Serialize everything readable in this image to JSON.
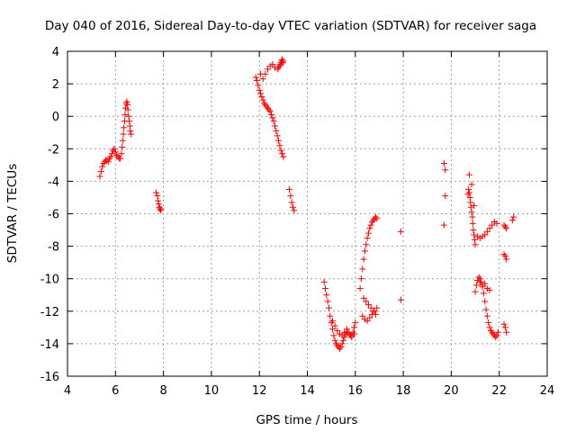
{
  "chart_data": {
    "type": "scatter",
    "title": "Day 040 of 2016, Sidereal Day-to-day VTEC variation (SDTVAR) for receiver saga",
    "xlabel": "GPS time / hours",
    "ylabel": "SDTVAR / TECUs",
    "xlim": [
      4,
      24
    ],
    "ylim": [
      -16,
      4
    ],
    "xticks": [
      4,
      6,
      8,
      10,
      12,
      14,
      16,
      18,
      20,
      22,
      24
    ],
    "yticks": [
      -16,
      -14,
      -12,
      -10,
      -8,
      -6,
      -4,
      -2,
      0,
      2,
      4
    ],
    "grid": true,
    "marker": "+",
    "color": "#ff0000",
    "series": [
      {
        "name": "SDTVAR",
        "x": [
          5.35,
          5.4,
          5.45,
          5.5,
          5.55,
          5.6,
          5.65,
          5.7,
          5.75,
          5.8,
          5.85,
          5.9,
          5.95,
          6.0,
          6.05,
          6.1,
          6.15,
          6.2,
          6.25,
          6.28,
          6.3,
          6.33,
          6.35,
          6.38,
          6.4,
          6.42,
          6.45,
          6.48,
          6.5,
          6.52,
          6.55,
          6.58,
          6.6,
          6.62,
          6.65,
          7.7,
          7.75,
          7.78,
          7.8,
          7.83,
          7.85,
          7.88,
          7.9,
          11.85,
          11.9,
          11.95,
          12.0,
          12.05,
          12.1,
          12.15,
          12.2,
          12.25,
          12.3,
          12.35,
          12.4,
          12.45,
          12.5,
          12.55,
          12.6,
          12.65,
          12.7,
          12.75,
          12.8,
          12.85,
          12.9,
          12.95,
          13.0,
          12.05,
          12.15,
          12.25,
          12.35,
          12.45,
          12.55,
          12.65,
          12.75,
          12.8,
          12.85,
          12.88,
          12.9,
          12.93,
          12.95,
          12.98,
          13.0,
          13.25,
          13.3,
          13.35,
          13.4,
          13.45,
          14.7,
          14.75,
          14.8,
          14.85,
          14.9,
          14.95,
          15.0,
          15.05,
          15.1,
          15.15,
          15.2,
          15.25,
          15.3,
          15.35,
          15.4,
          15.45,
          15.5,
          15.55,
          15.6,
          15.65,
          15.7,
          15.75,
          15.8,
          15.85,
          15.9,
          15.95,
          16.0,
          15.05,
          15.15,
          15.25,
          15.35,
          15.45,
          15.55,
          15.65,
          15.75,
          15.85,
          15.95,
          16.2,
          16.25,
          16.3,
          16.35,
          16.4,
          16.45,
          16.5,
          16.55,
          16.6,
          16.65,
          16.7,
          16.75,
          16.8,
          16.85,
          16.9,
          16.3,
          16.4,
          16.5,
          16.6,
          16.7,
          16.8,
          16.9,
          16.35,
          16.45,
          16.55,
          16.65,
          16.75,
          16.85,
          17.9,
          17.9,
          19.7,
          19.75,
          19.75,
          19.7,
          20.7,
          20.72,
          20.75,
          20.78,
          20.8,
          20.82,
          20.85,
          20.88,
          20.9,
          20.92,
          20.95,
          20.98,
          21.0,
          20.75,
          20.85,
          20.95,
          21.1,
          21.2,
          21.3,
          21.4,
          21.5,
          21.6,
          21.7,
          21.8,
          21.9,
          21.0,
          21.05,
          21.1,
          21.15,
          21.2,
          21.25,
          21.3,
          21.35,
          21.4,
          21.45,
          21.5,
          21.55,
          21.6,
          21.65,
          21.7,
          21.75,
          21.8,
          21.85,
          21.9,
          21.95,
          21.2,
          21.3,
          21.4,
          21.5,
          21.6,
          22.2,
          22.25,
          22.3,
          22.2,
          22.25,
          22.3,
          22.2,
          22.25,
          22.3,
          22.55,
          22.6
        ],
        "y": [
          -3.7,
          -3.4,
          -3.1,
          -2.9,
          -2.8,
          -2.7,
          -2.7,
          -2.8,
          -2.6,
          -2.5,
          -2.3,
          -2.1,
          -2.0,
          -2.2,
          -2.4,
          -2.5,
          -2.6,
          -2.6,
          -2.3,
          -1.9,
          -1.5,
          -1.1,
          -0.7,
          -0.3,
          0.1,
          0.5,
          0.8,
          0.9,
          0.7,
          0.4,
          0.0,
          -0.3,
          -0.6,
          -0.9,
          -1.1,
          -4.7,
          -4.9,
          -5.2,
          -5.4,
          -5.6,
          -5.7,
          -5.8,
          -5.7,
          2.4,
          2.2,
          1.9,
          1.6,
          1.4,
          1.2,
          1.0,
          0.8,
          0.7,
          0.6,
          0.5,
          0.4,
          0.3,
          0.1,
          -0.1,
          -0.3,
          -0.6,
          -0.9,
          -1.2,
          -1.5,
          -1.8,
          -2.1,
          -2.3,
          -2.5,
          2.6,
          2.3,
          2.6,
          2.9,
          3.1,
          3.2,
          3.0,
          2.9,
          3.0,
          3.1,
          3.2,
          3.3,
          3.4,
          3.5,
          3.3,
          3.4,
          -4.5,
          -4.9,
          -5.3,
          -5.6,
          -5.8,
          -10.2,
          -10.6,
          -11.0,
          -11.4,
          -11.8,
          -12.3,
          -12.7,
          -13.1,
          -13.5,
          -13.8,
          -14.0,
          -14.1,
          -14.2,
          -14.3,
          -14.2,
          -14.0,
          -13.8,
          -13.6,
          -13.4,
          -13.3,
          -13.3,
          -13.4,
          -13.5,
          -13.5,
          -13.3,
          -13.0,
          -12.7,
          -12.6,
          -12.9,
          -13.2,
          -13.4,
          -13.5,
          -13.3,
          -13.1,
          -13.4,
          -13.6,
          -13.4,
          -10.6,
          -10.0,
          -9.4,
          -8.8,
          -8.3,
          -7.9,
          -7.5,
          -7.2,
          -6.9,
          -6.7,
          -6.5,
          -6.4,
          -6.3,
          -6.2,
          -6.3,
          -12.3,
          -12.5,
          -12.6,
          -12.4,
          -12.2,
          -12.0,
          -11.8,
          -11.2,
          -11.4,
          -11.6,
          -11.8,
          -12.0,
          -12.2,
          -7.1,
          -11.3,
          -2.9,
          -3.3,
          -4.9,
          -6.7,
          -4.8,
          -4.5,
          -4.7,
          -5.0,
          -5.3,
          -5.6,
          -5.9,
          -6.2,
          -6.6,
          -7.0,
          -7.3,
          -7.6,
          -7.9,
          -3.6,
          -4.2,
          -5.5,
          -7.4,
          -7.5,
          -7.4,
          -7.3,
          -7.1,
          -6.9,
          -6.7,
          -6.5,
          -6.6,
          -10.8,
          -10.4,
          -10.1,
          -9.9,
          -10.0,
          -10.2,
          -10.5,
          -10.9,
          -11.4,
          -11.9,
          -12.3,
          -12.7,
          -13.0,
          -13.2,
          -13.3,
          -13.4,
          -13.5,
          -13.6,
          -13.5,
          -13.3,
          -10.2,
          -10.4,
          -10.3,
          -10.6,
          -10.7,
          -6.7,
          -6.8,
          -6.9,
          -8.5,
          -8.6,
          -8.8,
          -12.8,
          -13.0,
          -13.3,
          -6.4,
          -6.2
        ]
      }
    ]
  }
}
